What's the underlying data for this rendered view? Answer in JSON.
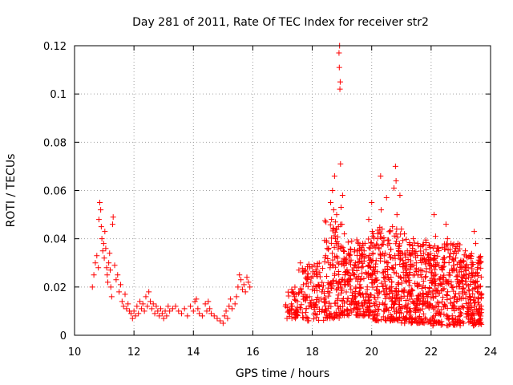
{
  "chart_data": {
    "type": "scatter",
    "title": "Day 281 of 2011, Rate Of TEC Index for receiver str2",
    "xlabel": "GPS time / hours",
    "ylabel": "ROTI / TECUs",
    "xlim": [
      10,
      24
    ],
    "ylim": [
      0,
      0.12
    ],
    "x_ticks": [
      10,
      12,
      14,
      16,
      18,
      20,
      22,
      24
    ],
    "x_tick_labels": [
      "10",
      "12",
      "14",
      "16",
      "18",
      "20",
      "22",
      "24"
    ],
    "y_ticks": [
      0,
      0.02,
      0.04,
      0.06,
      0.08,
      0.1,
      0.12
    ],
    "y_tick_labels": [
      "0",
      "0.02",
      "0.04",
      "0.06",
      "0.08",
      "0.1",
      "0.12"
    ],
    "grid": true,
    "marker": "+",
    "color": "#ff0000",
    "series": [
      {
        "points": [
          [
            10.6,
            0.02
          ],
          [
            10.65,
            0.025
          ],
          [
            10.7,
            0.03
          ],
          [
            10.75,
            0.033
          ],
          [
            10.8,
            0.028
          ],
          [
            10.82,
            0.048
          ],
          [
            10.85,
            0.055
          ],
          [
            10.88,
            0.052
          ],
          [
            10.9,
            0.045
          ],
          [
            10.92,
            0.04
          ],
          [
            10.95,
            0.035
          ],
          [
            10.98,
            0.038
          ],
          [
            11.0,
            0.032
          ],
          [
            11.02,
            0.043
          ],
          [
            11.05,
            0.036
          ],
          [
            11.08,
            0.028
          ],
          [
            11.1,
            0.025
          ],
          [
            11.12,
            0.022
          ],
          [
            11.15,
            0.03
          ],
          [
            11.18,
            0.034
          ],
          [
            11.2,
            0.027
          ],
          [
            11.22,
            0.02
          ],
          [
            11.25,
            0.016
          ],
          [
            11.28,
            0.046
          ],
          [
            11.3,
            0.049
          ],
          [
            11.35,
            0.029
          ],
          [
            11.4,
            0.023
          ],
          [
            11.45,
            0.025
          ],
          [
            11.5,
            0.018
          ],
          [
            11.55,
            0.021
          ],
          [
            11.6,
            0.014
          ],
          [
            11.65,
            0.012
          ],
          [
            11.7,
            0.017
          ],
          [
            11.75,
            0.011
          ],
          [
            11.8,
            0.013
          ],
          [
            11.85,
            0.01
          ],
          [
            11.9,
            0.009
          ],
          [
            11.95,
            0.007
          ],
          [
            12.0,
            0.01
          ],
          [
            12.05,
            0.008
          ],
          [
            12.1,
            0.012
          ],
          [
            12.15,
            0.009
          ],
          [
            12.2,
            0.014
          ],
          [
            12.25,
            0.011
          ],
          [
            12.3,
            0.013
          ],
          [
            12.35,
            0.01
          ],
          [
            12.4,
            0.016
          ],
          [
            12.45,
            0.012
          ],
          [
            12.5,
            0.018
          ],
          [
            12.55,
            0.014
          ],
          [
            12.6,
            0.011
          ],
          [
            12.65,
            0.013
          ],
          [
            12.7,
            0.009
          ],
          [
            12.75,
            0.012
          ],
          [
            12.8,
            0.01
          ],
          [
            12.85,
            0.008
          ],
          [
            12.9,
            0.011
          ],
          [
            12.95,
            0.009
          ],
          [
            13.0,
            0.007
          ],
          [
            13.05,
            0.01
          ],
          [
            13.1,
            0.008
          ],
          [
            13.15,
            0.012
          ],
          [
            13.2,
            0.01
          ],
          [
            13.3,
            0.011
          ],
          [
            13.4,
            0.012
          ],
          [
            13.5,
            0.01
          ],
          [
            13.6,
            0.009
          ],
          [
            13.7,
            0.011
          ],
          [
            13.8,
            0.008
          ],
          [
            13.9,
            0.012
          ],
          [
            14.0,
            0.01
          ],
          [
            14.05,
            0.014
          ],
          [
            14.1,
            0.015
          ],
          [
            14.15,
            0.011
          ],
          [
            14.2,
            0.009
          ],
          [
            14.3,
            0.008
          ],
          [
            14.4,
            0.013
          ],
          [
            14.45,
            0.01
          ],
          [
            14.5,
            0.014
          ],
          [
            14.55,
            0.011
          ],
          [
            14.6,
            0.009
          ],
          [
            14.7,
            0.008
          ],
          [
            14.8,
            0.007
          ],
          [
            14.9,
            0.006
          ],
          [
            15.0,
            0.005
          ],
          [
            15.05,
            0.008
          ],
          [
            15.1,
            0.01
          ],
          [
            15.15,
            0.007
          ],
          [
            15.2,
            0.012
          ],
          [
            15.25,
            0.015
          ],
          [
            15.3,
            0.011
          ],
          [
            15.4,
            0.013
          ],
          [
            15.45,
            0.016
          ],
          [
            15.5,
            0.02
          ],
          [
            15.55,
            0.025
          ],
          [
            15.6,
            0.023
          ],
          [
            15.65,
            0.019
          ],
          [
            15.7,
            0.021
          ],
          [
            15.75,
            0.018
          ],
          [
            15.8,
            0.024
          ],
          [
            15.85,
            0.022
          ],
          [
            15.9,
            0.02
          ],
          [
            17.1,
            0.012
          ],
          [
            17.15,
            0.007
          ],
          [
            17.2,
            0.01
          ],
          [
            17.3,
            0.013
          ],
          [
            17.35,
            0.018
          ],
          [
            17.4,
            0.016
          ],
          [
            17.45,
            0.01
          ],
          [
            17.5,
            0.014
          ],
          [
            17.55,
            0.027
          ],
          [
            17.6,
            0.03
          ],
          [
            17.65,
            0.018
          ],
          [
            17.7,
            0.021
          ],
          [
            17.75,
            0.015
          ],
          [
            17.8,
            0.011
          ],
          [
            17.85,
            0.007
          ],
          [
            17.9,
            0.016
          ],
          [
            17.95,
            0.022
          ],
          [
            18.0,
            0.019
          ],
          [
            18.05,
            0.013
          ],
          [
            18.1,
            0.009
          ],
          [
            18.15,
            0.025
          ],
          [
            18.2,
            0.021
          ],
          [
            18.25,
            0.026
          ],
          [
            18.3,
            0.015
          ],
          [
            18.35,
            0.019
          ],
          [
            18.4,
            0.014
          ],
          [
            18.45,
            0.033
          ],
          [
            18.5,
            0.036
          ],
          [
            18.55,
            0.03
          ],
          [
            18.6,
            0.028
          ],
          [
            18.62,
            0.055
          ],
          [
            18.65,
            0.048
          ],
          [
            18.68,
            0.06
          ],
          [
            18.7,
            0.044
          ],
          [
            18.72,
            0.052
          ],
          [
            18.75,
            0.066
          ],
          [
            18.78,
            0.04
          ],
          [
            18.8,
            0.038
          ],
          [
            18.82,
            0.05
          ],
          [
            18.85,
            0.032
          ],
          [
            18.88,
            0.045
          ],
          [
            18.9,
            0.117
          ],
          [
            18.91,
            0.111
          ],
          [
            18.92,
            0.12
          ],
          [
            18.93,
            0.102
          ],
          [
            18.94,
            0.105
          ],
          [
            18.95,
            0.071
          ],
          [
            18.97,
            0.053
          ],
          [
            19.0,
            0.046
          ],
          [
            19.02,
            0.058
          ],
          [
            19.05,
            0.035
          ],
          [
            19.08,
            0.042
          ],
          [
            19.1,
            0.025
          ],
          [
            19.15,
            0.03
          ],
          [
            19.2,
            0.022
          ],
          [
            19.25,
            0.033
          ],
          [
            19.3,
            0.019
          ],
          [
            19.35,
            0.027
          ],
          [
            19.4,
            0.014
          ],
          [
            19.45,
            0.03
          ],
          [
            19.5,
            0.024
          ],
          [
            19.55,
            0.038
          ],
          [
            19.6,
            0.021
          ],
          [
            19.65,
            0.028
          ],
          [
            19.7,
            0.017
          ],
          [
            19.75,
            0.032
          ],
          [
            19.8,
            0.026
          ],
          [
            19.85,
            0.019
          ],
          [
            19.9,
            0.048
          ],
          [
            19.95,
            0.036
          ],
          [
            20.0,
            0.055
          ],
          [
            20.02,
            0.043
          ],
          [
            20.05,
            0.028
          ],
          [
            20.08,
            0.037
          ],
          [
            20.1,
            0.022
          ],
          [
            20.15,
            0.031
          ],
          [
            20.2,
            0.04
          ],
          [
            20.25,
            0.018
          ],
          [
            20.3,
            0.066
          ],
          [
            20.32,
            0.052
          ],
          [
            20.35,
            0.044
          ],
          [
            20.4,
            0.026
          ],
          [
            20.45,
            0.034
          ],
          [
            20.5,
            0.057
          ],
          [
            20.55,
            0.03
          ],
          [
            20.6,
            0.038
          ],
          [
            20.65,
            0.024
          ],
          [
            20.7,
            0.045
          ],
          [
            20.75,
            0.061
          ],
          [
            20.8,
            0.07
          ],
          [
            20.82,
            0.064
          ],
          [
            20.85,
            0.05
          ],
          [
            20.9,
            0.036
          ],
          [
            20.95,
            0.058
          ],
          [
            21.0,
            0.044
          ],
          [
            21.05,
            0.031
          ],
          [
            21.1,
            0.042
          ],
          [
            21.15,
            0.027
          ],
          [
            21.2,
            0.035
          ],
          [
            21.25,
            0.022
          ],
          [
            21.3,
            0.033
          ],
          [
            21.35,
            0.019
          ],
          [
            21.4,
            0.04
          ],
          [
            21.45,
            0.025
          ],
          [
            21.5,
            0.03
          ],
          [
            21.55,
            0.038
          ],
          [
            21.6,
            0.021
          ],
          [
            21.65,
            0.027
          ],
          [
            21.7,
            0.016
          ],
          [
            21.75,
            0.034
          ],
          [
            21.8,
            0.024
          ],
          [
            21.85,
            0.031
          ],
          [
            21.9,
            0.018
          ],
          [
            21.95,
            0.037
          ],
          [
            22.0,
            0.026
          ],
          [
            22.05,
            0.022
          ],
          [
            22.1,
            0.05
          ],
          [
            22.15,
            0.041
          ],
          [
            22.2,
            0.03
          ],
          [
            22.25,
            0.036
          ],
          [
            22.3,
            0.023
          ],
          [
            22.35,
            0.028
          ],
          [
            22.4,
            0.019
          ],
          [
            22.45,
            0.032
          ],
          [
            22.5,
            0.046
          ],
          [
            22.55,
            0.04
          ],
          [
            22.6,
            0.025
          ],
          [
            22.65,
            0.034
          ],
          [
            22.7,
            0.02
          ],
          [
            22.75,
            0.029
          ],
          [
            22.8,
            0.016
          ],
          [
            22.85,
            0.027
          ],
          [
            22.9,
            0.038
          ],
          [
            22.95,
            0.022
          ],
          [
            23.0,
            0.031
          ],
          [
            23.05,
            0.018
          ],
          [
            23.1,
            0.025
          ],
          [
            23.15,
            0.035
          ],
          [
            23.2,
            0.021
          ],
          [
            23.25,
            0.028
          ],
          [
            23.3,
            0.013
          ],
          [
            23.35,
            0.024
          ],
          [
            23.4,
            0.019
          ],
          [
            23.45,
            0.043
          ],
          [
            23.5,
            0.038
          ],
          [
            23.55,
            0.026
          ],
          [
            23.6,
            0.02
          ],
          [
            23.65,
            0.032
          ],
          [
            23.7,
            0.017
          ]
        ],
        "band": {
          "ranges": [
            [
              17.1,
              17.6,
              0.007,
              0.02,
              40
            ],
            [
              17.6,
              18.4,
              0.006,
              0.03,
              90
            ],
            [
              18.4,
              19.0,
              0.007,
              0.048,
              120
            ],
            [
              19.0,
              20.0,
              0.008,
              0.04,
              220
            ],
            [
              20.0,
              21.0,
              0.006,
              0.045,
              240
            ],
            [
              21.0,
              22.0,
              0.005,
              0.04,
              240
            ],
            [
              22.0,
              23.0,
              0.004,
              0.038,
              230
            ],
            [
              23.0,
              23.7,
              0.004,
              0.034,
              170
            ]
          ]
        }
      }
    ]
  }
}
